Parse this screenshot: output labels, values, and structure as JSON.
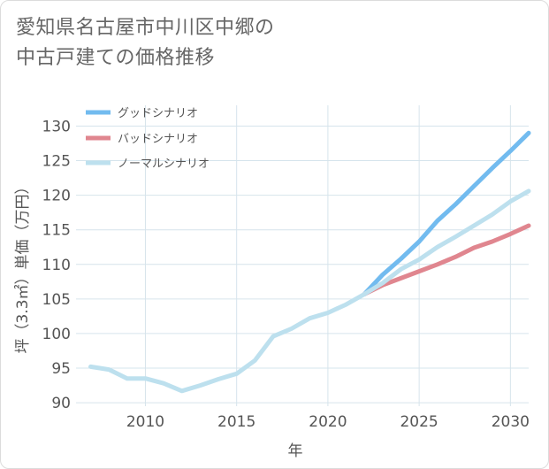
{
  "title_lines": [
    "愛知県名古屋市中川区中郷の",
    "中古戸建ての価格推移"
  ],
  "chart_data": {
    "type": "line",
    "xlabel": "年",
    "ylabel": "坪（3.3㎡）単価（万円）",
    "xlim": [
      2006.2,
      2031
    ],
    "ylim": [
      89.5,
      133
    ],
    "x_ticks": [
      2010,
      2015,
      2020,
      2025,
      2030
    ],
    "y_ticks": [
      90,
      95,
      100,
      105,
      110,
      115,
      120,
      125,
      130
    ],
    "grid": true,
    "legend_position": "top-left",
    "series": [
      {
        "name": "グッドシナリオ",
        "color": "#72bbef",
        "x": [
          2022,
          2023,
          2024,
          2025,
          2026,
          2027,
          2028,
          2029,
          2030,
          2031
        ],
        "y": [
          105.7,
          108.5,
          110.8,
          113.3,
          116.3,
          118.7,
          121.3,
          123.9,
          126.4,
          129.0
        ]
      },
      {
        "name": "バッドシナリオ",
        "color": "#e0868f",
        "x": [
          2022,
          2023,
          2024,
          2025,
          2026,
          2027,
          2028,
          2029,
          2030,
          2031
        ],
        "y": [
          105.7,
          107.0,
          108.0,
          109.0,
          110.0,
          111.1,
          112.4,
          113.3,
          114.4,
          115.6
        ]
      },
      {
        "name": "ノーマルシナリオ",
        "color": "#bde0ee",
        "x": [
          2007,
          2008,
          2009,
          2010,
          2011,
          2012,
          2013,
          2014,
          2015,
          2016,
          2017,
          2018,
          2019,
          2020,
          2021,
          2022,
          2023,
          2024,
          2025,
          2026,
          2027,
          2028,
          2029,
          2030,
          2031
        ],
        "y": [
          95.2,
          94.8,
          93.5,
          93.5,
          92.8,
          91.7,
          92.5,
          93.4,
          94.2,
          96.1,
          99.6,
          100.7,
          102.2,
          103.0,
          104.2,
          105.7,
          107.3,
          109.3,
          110.7,
          112.5,
          114.0,
          115.6,
          117.2,
          119.1,
          120.6
        ]
      }
    ]
  }
}
